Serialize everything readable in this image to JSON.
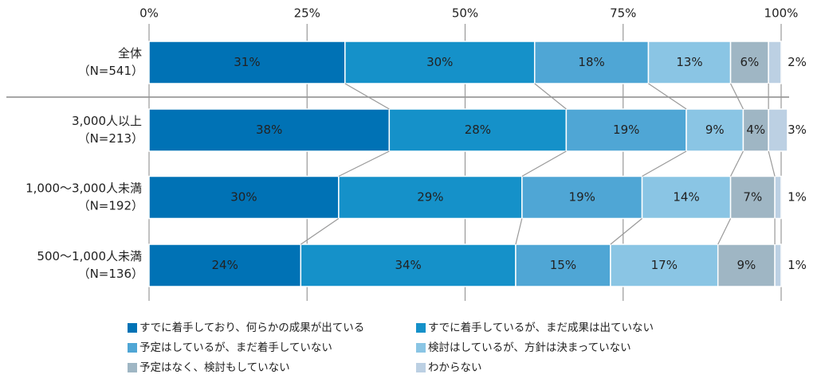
{
  "chart_data": {
    "type": "stacked-bar-horizontal",
    "categories": [
      "全体",
      "3,000人以上",
      "1,000～3,000人未満",
      "500～1,000人未満"
    ],
    "category_notes": [
      "（N=541）",
      "（N=213）",
      "（N=192）",
      "（N=136）"
    ],
    "series": [
      {
        "name": "すでに着手しており、何らかの成果が出ている",
        "color": "#0072b5",
        "values": [
          31,
          38,
          30,
          24
        ],
        "value_labels": [
          "31%",
          "38%",
          "30%",
          "24%"
        ]
      },
      {
        "name": "すでに着手しているが、まだ成果は出ていない",
        "color": "#1591c9",
        "values": [
          30,
          28,
          29,
          34
        ],
        "value_labels": [
          "30%",
          "28%",
          "29%",
          "34%"
        ]
      },
      {
        "name": "予定はしているが、まだ着手していない",
        "color": "#4fa6d5",
        "values": [
          18,
          19,
          19,
          15
        ],
        "value_labels": [
          "18%",
          "19%",
          "19%",
          "15%"
        ]
      },
      {
        "name": "検討はしているが、方針は決まっていない",
        "color": "#8ac5e4",
        "values": [
          13,
          9,
          14,
          17
        ],
        "value_labels": [
          "13%",
          "9%",
          "14%",
          "17%"
        ]
      },
      {
        "name": "予定はなく、検討もしていない",
        "color": "#9fb6c4",
        "values": [
          6,
          4,
          7,
          9
        ],
        "value_labels": [
          "6%",
          "4%",
          "7%",
          "9%"
        ]
      },
      {
        "name": "わからない",
        "color": "#bcd0e3",
        "values": [
          2,
          3,
          1,
          1
        ],
        "value_labels": [
          "2%",
          "3%",
          "1%",
          "1%"
        ]
      }
    ],
    "xlim": [
      0,
      100
    ],
    "xticks": [
      {
        "value": 0,
        "label": "0%"
      },
      {
        "value": 25,
        "label": "25%"
      },
      {
        "value": 50,
        "label": "50%"
      },
      {
        "value": 75,
        "label": "75%"
      },
      {
        "value": 100,
        "label": "100%"
      }
    ],
    "grid": true,
    "legend": "bottom"
  }
}
